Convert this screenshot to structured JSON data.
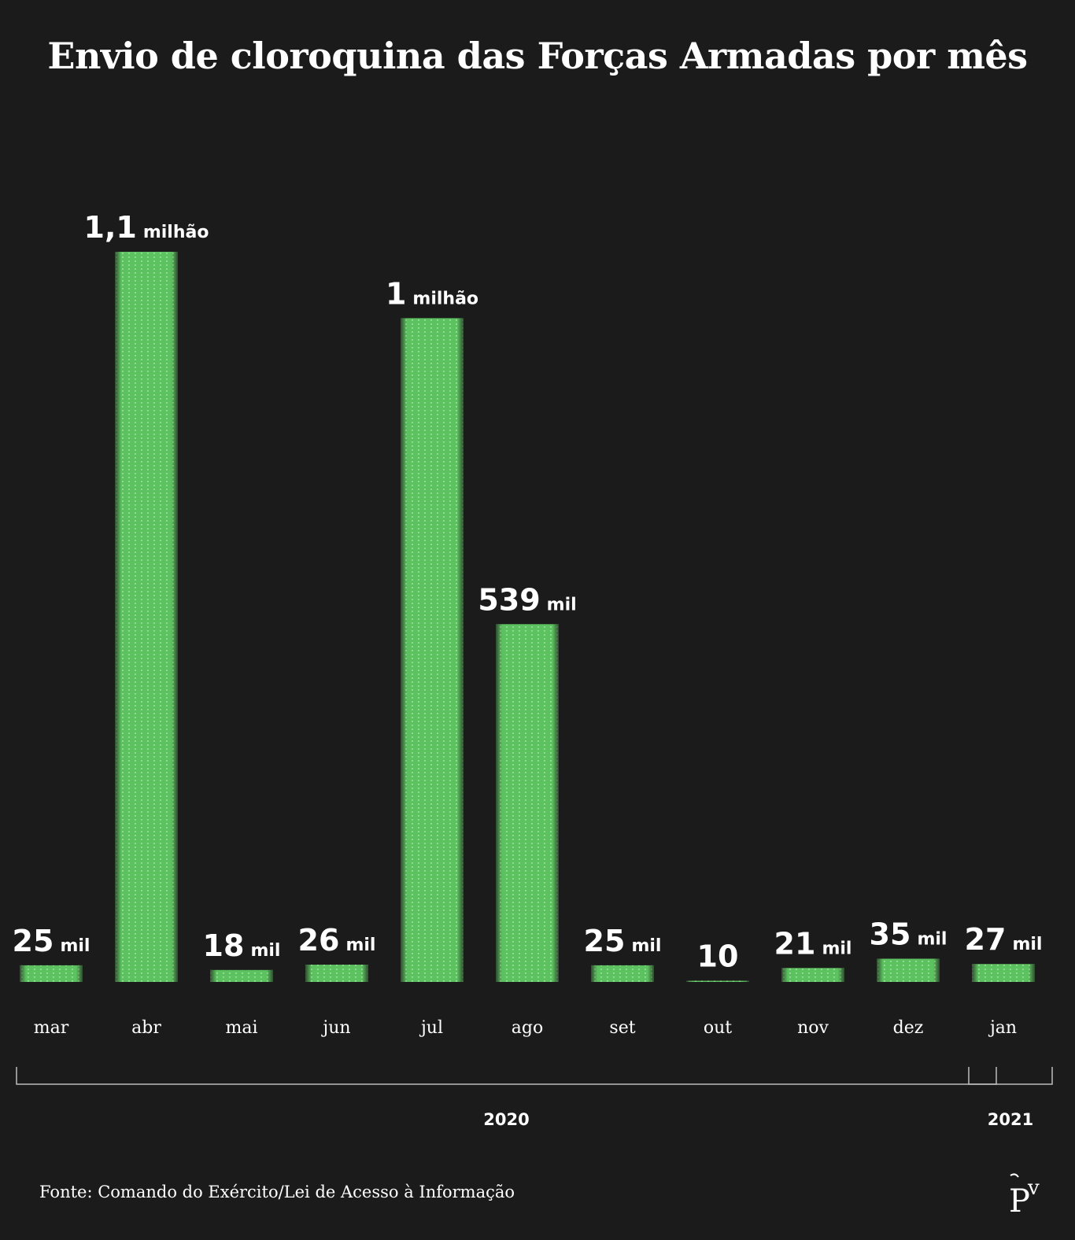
{
  "title": "Envio de cloroquina das Forças Armadas por mês",
  "source": "Fonte: Comando do Exército/Lei de Acesso à Informação",
  "colors": {
    "background": "#1b1b1b",
    "bar": "#5cc15f",
    "text": "#ffffff"
  },
  "logo_icon": "pv-logo-icon",
  "chart_data": {
    "type": "bar",
    "categories": [
      "mar",
      "abr",
      "mai",
      "jun",
      "jul",
      "ago",
      "set",
      "out",
      "nov",
      "dez",
      "jan"
    ],
    "values": [
      25000,
      1100000,
      18000,
      26000,
      1000000,
      539000,
      25000,
      10,
      21000,
      35000,
      27000
    ],
    "labels": [
      {
        "num": "25",
        "unit": "mil"
      },
      {
        "num": "1,1",
        "unit": "milhão"
      },
      {
        "num": "18",
        "unit": "mil"
      },
      {
        "num": "26",
        "unit": "mil"
      },
      {
        "num": "1",
        "unit": "milhão"
      },
      {
        "num": "539",
        "unit": "mil"
      },
      {
        "num": "25",
        "unit": "mil"
      },
      {
        "num": "10",
        "unit": ""
      },
      {
        "num": "21",
        "unit": "mil"
      },
      {
        "num": "35",
        "unit": "mil"
      },
      {
        "num": "27",
        "unit": "mil"
      }
    ],
    "groups": [
      {
        "label": "2020",
        "from": 0,
        "to": 9
      },
      {
        "label": "2021",
        "from": 10,
        "to": 10
      }
    ],
    "ylim": [
      0,
      1100000
    ],
    "grid": false,
    "legend": "none"
  }
}
